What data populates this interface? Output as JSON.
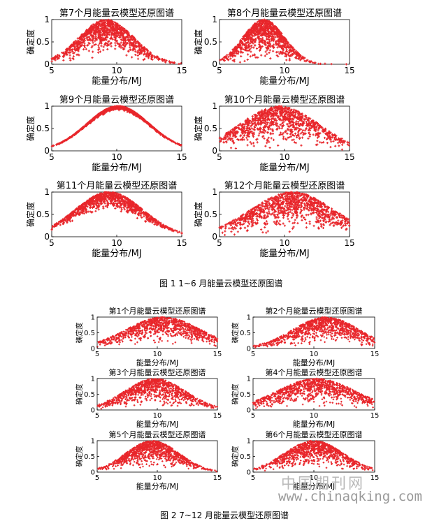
{
  "figure1": {
    "caption": "图 1 1~6 月能量云模型还原图谱"
  },
  "figure2": {
    "caption": "图 2 7~12 月能量云模型还原图谱"
  },
  "watermark": {
    "cn": "中国期刊网",
    "url": "www.chinaqking.com"
  },
  "colors": {
    "points": "#e8262b",
    "axis": "#000000"
  },
  "chart_data": [
    {
      "type": "scatter",
      "title": "第7个月能量云模型还原图谱",
      "xlabel": "能量分布/MJ",
      "ylabel": "确定度",
      "xlim": [
        5,
        15
      ],
      "ylim": [
        0,
        1
      ],
      "xticks": [
        5,
        10,
        15
      ],
      "yticks": [
        0,
        0.5,
        1
      ],
      "center": 9.2,
      "spread": 2.1,
      "min_membership": 0.15,
      "n_points": 1000,
      "marker": "+"
    },
    {
      "type": "scatter",
      "title": "第8个月能量云模型还原图谱",
      "xlabel": "能量分布/MJ",
      "ylabel": "确定度",
      "xlim": [
        5,
        15
      ],
      "ylim": [
        0,
        1
      ],
      "xticks": [
        5,
        10,
        15
      ],
      "yticks": [
        0,
        0.5,
        1
      ],
      "center": 8.4,
      "spread": 1.6,
      "min_membership": 0.05,
      "n_points": 1000,
      "marker": "+"
    },
    {
      "type": "scatter",
      "title": "第9个月能量云模型还原图谱",
      "xlabel": "能量分布/MJ",
      "ylabel": "确定度",
      "xlim": [
        5,
        15
      ],
      "ylim": [
        0,
        1
      ],
      "xticks": [
        5,
        10,
        15
      ],
      "yticks": [
        0,
        0.5,
        1
      ],
      "center": 10.1,
      "spread": 2.4,
      "min_membership": 0.9,
      "n_points": 1000,
      "marker": "+"
    },
    {
      "type": "scatter",
      "title": "第10个月能量云模型还原图谱",
      "xlabel": "能量分布/MJ",
      "ylabel": "确定度",
      "xlim": [
        5,
        15
      ],
      "ylim": [
        0,
        1
      ],
      "xticks": [
        5,
        10,
        15
      ],
      "yticks": [
        0,
        0.5,
        1
      ],
      "center": 9.6,
      "spread": 3.0,
      "min_membership": 0.0,
      "n_points": 1000,
      "marker": "+"
    },
    {
      "type": "scatter",
      "title": "第11个月能量云模型还原图谱",
      "xlabel": "能量分布/MJ",
      "ylabel": "确定度",
      "xlim": [
        5,
        15
      ],
      "ylim": [
        0,
        1
      ],
      "xticks": [
        5,
        10,
        15
      ],
      "yticks": [
        0,
        0.5,
        1
      ],
      "center": 9.4,
      "spread": 2.6,
      "min_membership": 0.55,
      "n_points": 1000,
      "marker": "+"
    },
    {
      "type": "scatter",
      "title": "第12个月能量云模型还原图谱",
      "xlabel": "能量分布/MJ",
      "ylabel": "确定度",
      "xlim": [
        5,
        15
      ],
      "ylim": [
        0,
        1
      ],
      "xticks": [
        5,
        10,
        15
      ],
      "yticks": [
        0,
        0.5,
        1
      ],
      "center": 10.6,
      "spread": 3.2,
      "min_membership": 0.05,
      "n_points": 1000,
      "marker": "+"
    },
    {
      "type": "scatter",
      "title": "第1个月能量云模型还原图谱",
      "xlabel": "能量分布/MJ",
      "ylabel": "确定度",
      "xlim": [
        5,
        15
      ],
      "ylim": [
        0,
        1
      ],
      "xticks": [
        5,
        10,
        15
      ],
      "yticks": [
        0,
        0.5,
        1
      ],
      "center": 10.5,
      "spread": 3.1,
      "min_membership": 0.05,
      "n_points": 1000,
      "marker": "+"
    },
    {
      "type": "scatter",
      "title": "第2个月能量云模型还原图谱",
      "xlabel": "能量分布/MJ",
      "ylabel": "确定度",
      "xlim": [
        5,
        15
      ],
      "ylim": [
        0,
        1
      ],
      "xticks": [
        5,
        10,
        15
      ],
      "yticks": [
        0,
        0.5,
        1
      ],
      "center": 11.0,
      "spread": 2.7,
      "min_membership": 0.05,
      "n_points": 1000,
      "marker": "+"
    },
    {
      "type": "scatter",
      "title": "第3个月能量云模型还原图谱",
      "xlabel": "能量分布/MJ",
      "ylabel": "确定度",
      "xlim": [
        5,
        15
      ],
      "ylim": [
        0,
        1
      ],
      "xticks": [
        5,
        10,
        15
      ],
      "yticks": [
        0,
        0.5,
        1
      ],
      "center": 9.8,
      "spread": 2.5,
      "min_membership": 0.05,
      "n_points": 1000,
      "marker": "+"
    },
    {
      "type": "scatter",
      "title": "第4个月能量云模型还原图谱",
      "xlabel": "能量分布/MJ",
      "ylabel": "确定度",
      "xlim": [
        5,
        15
      ],
      "ylim": [
        0,
        1
      ],
      "xticks": [
        5,
        10,
        15
      ],
      "yticks": [
        0,
        0.5,
        1
      ],
      "center": 10.2,
      "spread": 3.2,
      "min_membership": 0.05,
      "n_points": 1000,
      "marker": "+"
    },
    {
      "type": "scatter",
      "title": "第5个月能量云模型还原图谱",
      "xlabel": "能量分布/MJ",
      "ylabel": "确定度",
      "xlim": [
        5,
        15
      ],
      "ylim": [
        0,
        1
      ],
      "xticks": [
        5,
        10,
        15
      ],
      "yticks": [
        0,
        0.5,
        1
      ],
      "center": 9.6,
      "spread": 2.2,
      "min_membership": 0.1,
      "n_points": 1000,
      "marker": "+"
    },
    {
      "type": "scatter",
      "title": "第6个月能量云模型还原图谱",
      "xlabel": "能量分布/MJ",
      "ylabel": "确定度",
      "xlim": [
        5,
        15
      ],
      "ylim": [
        0,
        1
      ],
      "xticks": [
        5,
        10,
        15
      ],
      "yticks": [
        0,
        0.5,
        1
      ],
      "center": 10.0,
      "spread": 2.4,
      "min_membership": 0.05,
      "n_points": 1000,
      "marker": "+"
    }
  ]
}
